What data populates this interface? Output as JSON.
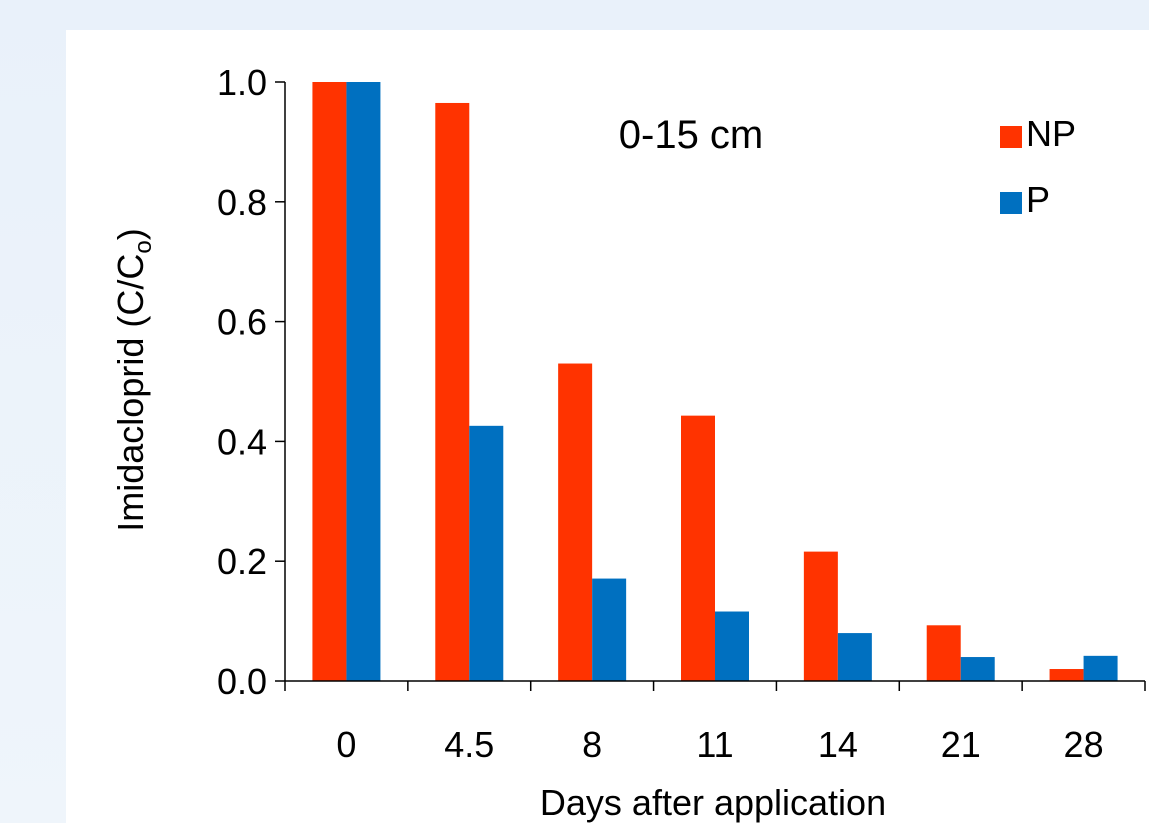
{
  "chart_data": {
    "type": "bar",
    "categories": [
      "0",
      "4.5",
      "8",
      "11",
      "14",
      "21",
      "28"
    ],
    "series": [
      {
        "name": "NP",
        "color": "#ff3300",
        "values": [
          1.0,
          0.965,
          0.53,
          0.443,
          0.216,
          0.093,
          0.02
        ]
      },
      {
        "name": "P",
        "color": "#0070c0",
        "values": [
          1.0,
          0.426,
          0.171,
          0.116,
          0.08,
          0.04,
          0.042
        ]
      }
    ],
    "xlabel": "Days after application",
    "ylabel": "Imidacloprid (C/C",
    "ylabel_subscript": "o",
    "ylabel_close": ")",
    "annotation": "0-15 cm",
    "ylim": [
      0,
      1.0
    ],
    "yticks": [
      "0.0",
      "0.2",
      "0.4",
      "0.6",
      "0.8",
      "1.0"
    ],
    "ytick_values": [
      0,
      0.2,
      0.4,
      0.6,
      0.8,
      1.0
    ],
    "legend_position": "top-right",
    "grid": false
  }
}
